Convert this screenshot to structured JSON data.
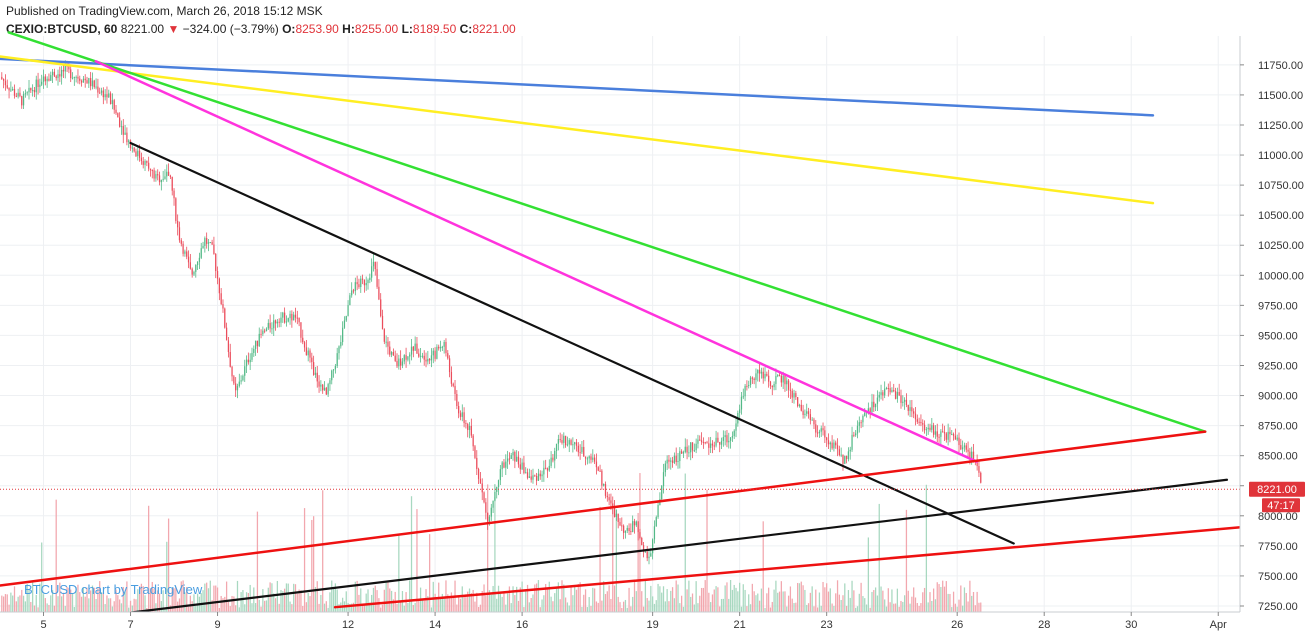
{
  "header": {
    "published": "Published on TradingView.com, March 26, 2018 15:12 MSK",
    "symbol": "CEXIO:BTCUSD, 60",
    "last": "8221.00",
    "change_arrow": "▼",
    "change": "−324.00 (−3.79%)",
    "o_label": "O:",
    "o_value": "8253.90",
    "h_label": "H:",
    "h_value": "8255.00",
    "l_label": "L:",
    "l_value": "8189.50",
    "c_label": "C:",
    "c_value": "8221.00"
  },
  "watermark": "BTCUSD chart by TradingView",
  "price_badge": {
    "value": "8221.00",
    "countdown": "47:17",
    "color": "#e0343a"
  },
  "colors": {
    "up": "#53b987",
    "down": "#eb4d5c",
    "volume_up": "#a8d8c0",
    "volume_down": "#f2a7ae",
    "grid": "#eef0f3"
  },
  "chart_data": {
    "type": "candlestick",
    "symbol": "BTCUSD",
    "interval": "60",
    "x_ticks": [
      "5",
      "7",
      "9",
      "12",
      "14",
      "16",
      "19",
      "21",
      "23",
      "26",
      "28",
      "30",
      "Apr"
    ],
    "x_range_days": [
      4.0,
      32.5
    ],
    "y_ticks": [
      7250,
      7500,
      7750,
      8000,
      8250,
      8500,
      8750,
      9000,
      9250,
      9500,
      9750,
      10000,
      10250,
      10500,
      10750,
      11000,
      11250,
      11500,
      11750
    ],
    "y_range": [
      7200,
      11990
    ],
    "last_price": 8221.0,
    "price_path": [
      [
        4.0,
        11650
      ],
      [
        4.5,
        11450
      ],
      [
        5.0,
        11650
      ],
      [
        5.5,
        11700
      ],
      [
        6.0,
        11620
      ],
      [
        6.5,
        11480
      ],
      [
        7.0,
        11080
      ],
      [
        7.3,
        10950
      ],
      [
        7.6,
        10800
      ],
      [
        7.9,
        10850
      ],
      [
        8.1,
        10350
      ],
      [
        8.4,
        10000
      ],
      [
        8.7,
        10300
      ],
      [
        8.9,
        10200
      ],
      [
        9.1,
        9750
      ],
      [
        9.4,
        9000
      ],
      [
        9.7,
        9300
      ],
      [
        10.0,
        9500
      ],
      [
        10.4,
        9650
      ],
      [
        10.8,
        9650
      ],
      [
        11.2,
        9200
      ],
      [
        11.5,
        9000
      ],
      [
        11.8,
        9400
      ],
      [
        12.1,
        9900
      ],
      [
        12.4,
        9950
      ],
      [
        12.6,
        10100
      ],
      [
        12.8,
        9500
      ],
      [
        13.1,
        9250
      ],
      [
        13.5,
        9400
      ],
      [
        13.9,
        9300
      ],
      [
        14.2,
        9450
      ],
      [
        14.5,
        8900
      ],
      [
        14.8,
        8700
      ],
      [
        15.0,
        8350
      ],
      [
        15.2,
        7950
      ],
      [
        15.5,
        8400
      ],
      [
        15.8,
        8500
      ],
      [
        16.2,
        8300
      ],
      [
        16.6,
        8400
      ],
      [
        16.9,
        8650
      ],
      [
        17.3,
        8550
      ],
      [
        17.7,
        8450
      ],
      [
        18.0,
        8100
      ],
      [
        18.4,
        7850
      ],
      [
        18.6,
        7950
      ],
      [
        18.9,
        7600
      ],
      [
        19.1,
        8000
      ],
      [
        19.3,
        8450
      ],
      [
        19.6,
        8500
      ],
      [
        20.0,
        8600
      ],
      [
        20.4,
        8600
      ],
      [
        20.8,
        8650
      ],
      [
        21.1,
        9050
      ],
      [
        21.4,
        9200
      ],
      [
        21.7,
        9100
      ],
      [
        22.0,
        9150
      ],
      [
        22.3,
        8950
      ],
      [
        22.7,
        8750
      ],
      [
        23.0,
        8650
      ],
      [
        23.4,
        8450
      ],
      [
        23.7,
        8750
      ],
      [
        24.0,
        8900
      ],
      [
        24.4,
        9050
      ],
      [
        24.8,
        8950
      ],
      [
        25.1,
        8750
      ],
      [
        25.5,
        8700
      ],
      [
        25.9,
        8650
      ],
      [
        26.2,
        8550
      ],
      [
        26.45,
        8450
      ],
      [
        26.55,
        8221
      ]
    ],
    "trendlines": [
      {
        "color": "#4a7fdc",
        "width": 2.5,
        "points": [
          [
            4.0,
            11800
          ],
          [
            30.5,
            11330
          ]
        ]
      },
      {
        "color": "#ffee22",
        "width": 2.5,
        "points": [
          [
            4.0,
            11820
          ],
          [
            30.5,
            10600
          ]
        ]
      },
      {
        "color": "#33e033",
        "width": 2.5,
        "points": [
          [
            4.2,
            12020
          ],
          [
            31.7,
            8700
          ]
        ]
      },
      {
        "color": "#ff33dd",
        "width": 2.5,
        "points": [
          [
            6.2,
            11780
          ],
          [
            26.45,
            8450
          ]
        ]
      },
      {
        "color": "#111111",
        "width": 2.2,
        "points": [
          [
            7.0,
            11100
          ],
          [
            27.3,
            7770
          ]
        ]
      },
      {
        "color": "#111111",
        "width": 2.2,
        "points": [
          [
            6.2,
            7160
          ],
          [
            32.2,
            8300
          ]
        ]
      },
      {
        "color": "#ee1111",
        "width": 2.5,
        "points": [
          [
            4.0,
            7420
          ],
          [
            31.7,
            8700
          ]
        ]
      },
      {
        "color": "#ee1111",
        "width": 2.5,
        "points": [
          [
            11.7,
            7240
          ],
          [
            33.0,
            7920
          ]
        ]
      }
    ]
  }
}
